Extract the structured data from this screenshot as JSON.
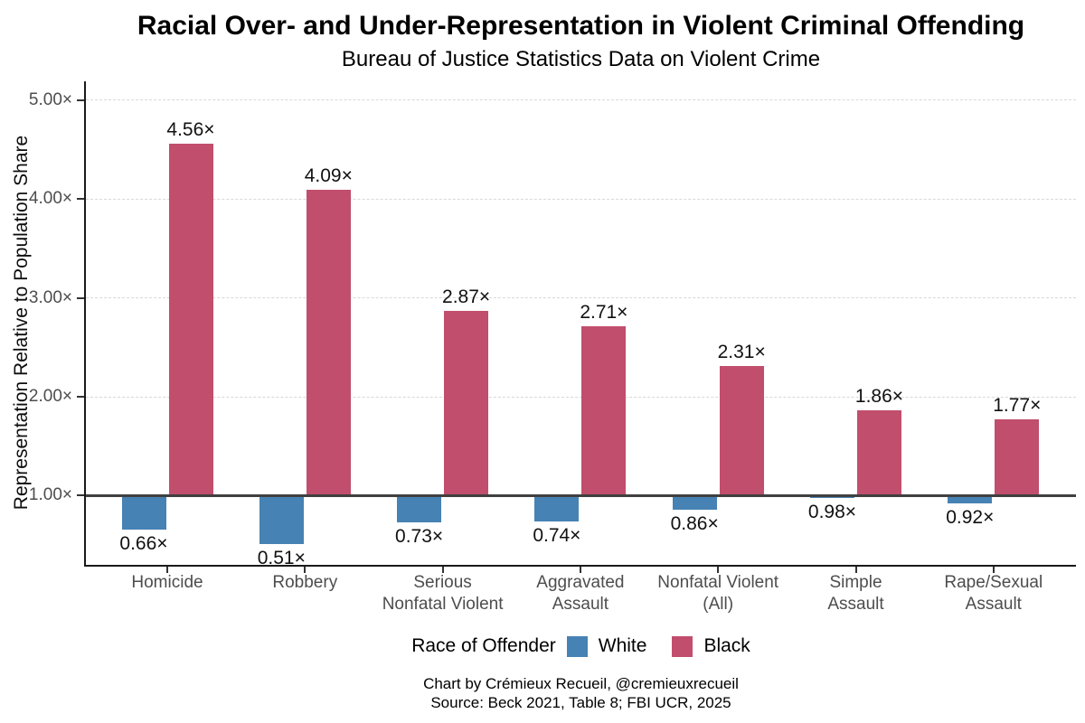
{
  "chart_data": {
    "type": "bar",
    "categories": [
      "Homicide",
      "Robbery",
      "Serious\nNonfatal Violent",
      "Aggravated\nAssault",
      "Nonfatal Violent\n(All)",
      "Simple\nAssault",
      "Rape/Sexual\nAssault"
    ],
    "series": [
      {
        "name": "White",
        "color": "#4682b4",
        "values": [
          0.66,
          0.51,
          0.73,
          0.74,
          0.86,
          0.98,
          0.92
        ]
      },
      {
        "name": "Black",
        "color": "#c14e6c",
        "values": [
          4.56,
          4.09,
          2.87,
          2.71,
          2.31,
          1.86,
          1.77
        ]
      }
    ],
    "data_labels": {
      "White": [
        "0.66×",
        "0.51×",
        "0.73×",
        "0.74×",
        "0.86×",
        "0.98×",
        "0.92×"
      ],
      "Black": [
        "4.56×",
        "4.09×",
        "2.87×",
        "2.71×",
        "2.31×",
        "1.86×",
        "1.77×"
      ]
    },
    "value_suffix": "×",
    "title": "Racial Over- and Under-Representation in Violent Criminal Offending",
    "subtitle": "Bureau of Justice Statistics Data on Violent Crime",
    "ylabel": "Representation Relative to Population Share",
    "xlabel": "",
    "ylim": [
      0.3,
      5.19
    ],
    "yticks": [
      {
        "value": 1,
        "label": "1.00×"
      },
      {
        "value": 2,
        "label": "2.00×"
      },
      {
        "value": 3,
        "label": "3.00×"
      },
      {
        "value": 4,
        "label": "4.00×"
      },
      {
        "value": 5,
        "label": "5.00×"
      }
    ],
    "baseline_value": 1.0,
    "grid": "horizontal dashed at y ticks",
    "legend_position": "bottom",
    "bar_orientation": "vertical, dodged pairs anchored at 1.00× baseline (Black above, White below)"
  },
  "legend": {
    "title": "Race of Offender",
    "items": [
      {
        "label": "White",
        "color": "#4682b4"
      },
      {
        "label": "Black",
        "color": "#c14e6c"
      }
    ]
  },
  "caption": {
    "line1": "Chart by Crémieux Recueil, @cremieuxrecueil",
    "line2": "Source: Beck 2021, Table 8; FBI UCR, 2025"
  },
  "colors": {
    "background": "#ffffff",
    "baseline": "#404040",
    "gridline": "#d8d8d8",
    "axis_line": "#1a1a1a",
    "tick_label": "#4d4d4d",
    "data_label": "#111111",
    "white_series": "#4682b4",
    "black_series": "#c14e6c"
  }
}
